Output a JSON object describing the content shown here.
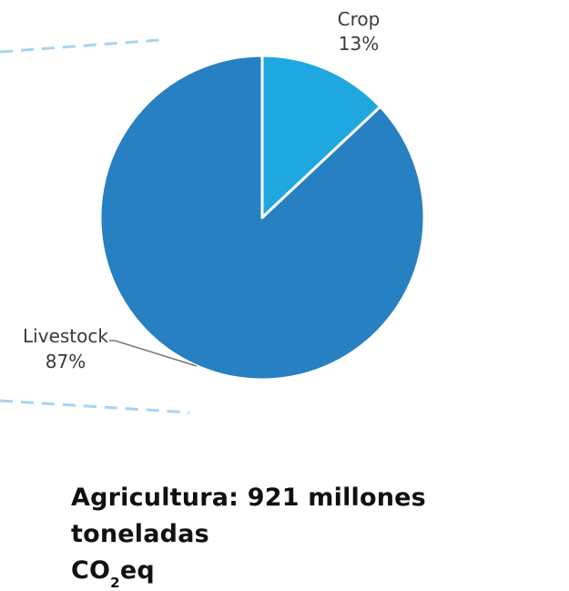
{
  "chart_data": {
    "type": "pie",
    "slices": [
      {
        "label": "Crop",
        "percent_label": "13%",
        "value": 13,
        "color": "#1fa8e0"
      },
      {
        "label": "Livestock",
        "percent_label": "87%",
        "value": 87,
        "color": "#2680c2"
      }
    ],
    "start_angle_deg": 0,
    "direction": "clockwise",
    "slice_border_color": "#ffffff",
    "connector_color": "#a8d4ee"
  },
  "caption": {
    "line1": "Agricultura: 921 millones toneladas",
    "co": "CO",
    "sub": "2",
    "eq": "eq"
  }
}
